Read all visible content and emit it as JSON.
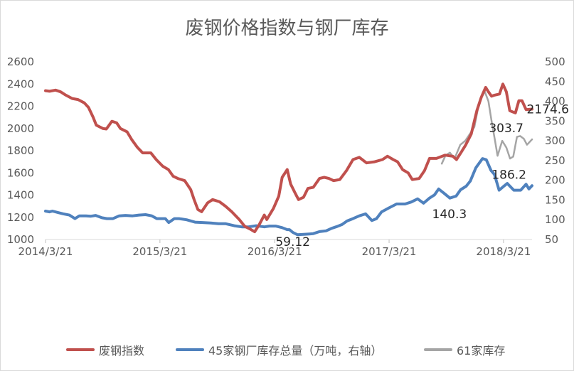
{
  "chart_data": {
    "type": "line",
    "title": "废钢价格指数与钢厂库存",
    "x_ticks": [
      "2014/3/21",
      "2015/3/21",
      "2016/3/21",
      "2017/3/21",
      "2018/3/21"
    ],
    "x_range": [
      "2014/3/21",
      "2018/6/20"
    ],
    "y_left": {
      "min": 1000,
      "max": 2600,
      "step": 200,
      "ticks": [
        "2600",
        "2400",
        "2200",
        "2000",
        "1800",
        "1600",
        "1400",
        "1200",
        "1000"
      ]
    },
    "y_right": {
      "min": 50,
      "max": 500,
      "step": 50,
      "ticks": [
        "500",
        "450",
        "400",
        "350",
        "300",
        "250",
        "200",
        "150",
        "100",
        "50"
      ]
    },
    "grid": false,
    "legend_position": "bottom",
    "series": [
      {
        "name": "废钢指数",
        "axis": "left",
        "color": "#c0504d",
        "points": [
          [
            "2014-03-21",
            2340
          ],
          [
            "2014-04-03",
            2335
          ],
          [
            "2014-04-22",
            2345
          ],
          [
            "2014-05-08",
            2330
          ],
          [
            "2014-05-25",
            2300
          ],
          [
            "2014-06-14",
            2270
          ],
          [
            "2014-07-03",
            2260
          ],
          [
            "2014-07-23",
            2230
          ],
          [
            "2014-08-05",
            2190
          ],
          [
            "2014-08-20",
            2100
          ],
          [
            "2014-08-30",
            2030
          ],
          [
            "2014-09-20",
            2000
          ],
          [
            "2014-10-01",
            1995
          ],
          [
            "2014-10-19",
            2065
          ],
          [
            "2014-11-03",
            2050
          ],
          [
            "2014-11-15",
            2000
          ],
          [
            "2014-12-06",
            1970
          ],
          [
            "2014-12-21",
            1900
          ],
          [
            "2015-01-08",
            1830
          ],
          [
            "2015-01-25",
            1780
          ],
          [
            "2015-02-20",
            1780
          ],
          [
            "2015-03-09",
            1720
          ],
          [
            "2015-03-30",
            1660
          ],
          [
            "2015-04-17",
            1630
          ],
          [
            "2015-05-02",
            1570
          ],
          [
            "2015-05-17",
            1550
          ],
          [
            "2015-06-08",
            1530
          ],
          [
            "2015-06-27",
            1450
          ],
          [
            "2015-07-08",
            1360
          ],
          [
            "2015-07-20",
            1270
          ],
          [
            "2015-08-01",
            1250
          ],
          [
            "2015-08-20",
            1330
          ],
          [
            "2015-09-05",
            1360
          ],
          [
            "2015-09-27",
            1340
          ],
          [
            "2015-10-16",
            1300
          ],
          [
            "2015-11-05",
            1250
          ],
          [
            "2015-11-29",
            1180
          ],
          [
            "2015-12-16",
            1120
          ],
          [
            "2016-01-05",
            1090
          ],
          [
            "2016-01-17",
            1070
          ],
          [
            "2016-01-31",
            1130
          ],
          [
            "2016-02-17",
            1220
          ],
          [
            "2016-02-25",
            1180
          ],
          [
            "2016-03-17",
            1280
          ],
          [
            "2016-04-03",
            1390
          ],
          [
            "2016-04-14",
            1560
          ],
          [
            "2016-04-30",
            1630
          ],
          [
            "2016-05-11",
            1500
          ],
          [
            "2016-05-25",
            1420
          ],
          [
            "2016-06-05",
            1360
          ],
          [
            "2016-06-21",
            1380
          ],
          [
            "2016-07-05",
            1460
          ],
          [
            "2016-07-22",
            1470
          ],
          [
            "2016-08-11",
            1550
          ],
          [
            "2016-08-26",
            1560
          ],
          [
            "2016-09-10",
            1550
          ],
          [
            "2016-09-25",
            1530
          ],
          [
            "2016-10-15",
            1540
          ],
          [
            "2016-11-05",
            1620
          ],
          [
            "2016-11-26",
            1720
          ],
          [
            "2016-12-16",
            1740
          ],
          [
            "2017-01-08",
            1690
          ],
          [
            "2017-02-03",
            1700
          ],
          [
            "2017-02-28",
            1720
          ],
          [
            "2017-03-16",
            1750
          ],
          [
            "2017-04-03",
            1720
          ],
          [
            "2017-04-17",
            1700
          ],
          [
            "2017-05-03",
            1630
          ],
          [
            "2017-05-21",
            1600
          ],
          [
            "2017-06-03",
            1540
          ],
          [
            "2017-06-25",
            1550
          ],
          [
            "2017-07-12",
            1620
          ],
          [
            "2017-07-28",
            1730
          ],
          [
            "2017-08-19",
            1730
          ],
          [
            "2017-09-16",
            1760
          ],
          [
            "2017-10-10",
            1750
          ],
          [
            "2017-10-22",
            1720
          ],
          [
            "2017-11-07",
            1790
          ],
          [
            "2017-11-20",
            1850
          ],
          [
            "2017-12-08",
            1950
          ],
          [
            "2017-12-26",
            2160
          ],
          [
            "2018-01-09",
            2280
          ],
          [
            "2018-01-23",
            2370
          ],
          [
            "2018-02-01",
            2330
          ],
          [
            "2018-02-11",
            2290
          ],
          [
            "2018-02-20",
            2300
          ],
          [
            "2018-03-08",
            2310
          ],
          [
            "2018-03-19",
            2400
          ],
          [
            "2018-03-30",
            2330
          ],
          [
            "2018-04-10",
            2160
          ],
          [
            "2018-04-28",
            2140
          ],
          [
            "2018-05-09",
            2250
          ],
          [
            "2018-05-19",
            2250
          ],
          [
            "2018-06-01",
            2170
          ],
          [
            "2018-06-20",
            2174.6
          ]
        ],
        "label": "2174.6"
      },
      {
        "name": "45家钢厂库存总量（万吨，右轴）",
        "axis": "right",
        "color": "#4f81bd",
        "points": [
          [
            "2014-03-21",
            122
          ],
          [
            "2014-04-03",
            120
          ],
          [
            "2014-04-12",
            122
          ],
          [
            "2014-05-01",
            118
          ],
          [
            "2014-05-17",
            115
          ],
          [
            "2014-06-05",
            112
          ],
          [
            "2014-06-23",
            103
          ],
          [
            "2014-07-07",
            110
          ],
          [
            "2014-07-28",
            110
          ],
          [
            "2014-08-13",
            109
          ],
          [
            "2014-08-28",
            111
          ],
          [
            "2014-09-17",
            105
          ],
          [
            "2014-10-03",
            103
          ],
          [
            "2014-10-22",
            103
          ],
          [
            "2014-11-11",
            110
          ],
          [
            "2014-12-01",
            111
          ],
          [
            "2014-12-24",
            110
          ],
          [
            "2015-01-13",
            112
          ],
          [
            "2015-02-03",
            113
          ],
          [
            "2015-02-23",
            110
          ],
          [
            "2015-03-11",
            103
          ],
          [
            "2015-04-07",
            103
          ],
          [
            "2015-04-18",
            93
          ],
          [
            "2015-05-06",
            103
          ],
          [
            "2015-05-21",
            103
          ],
          [
            "2015-06-14",
            100
          ],
          [
            "2015-07-11",
            94
          ],
          [
            "2015-08-04",
            93
          ],
          [
            "2015-08-30",
            92
          ],
          [
            "2015-09-24",
            90
          ],
          [
            "2015-10-17",
            90
          ],
          [
            "2015-11-13",
            85
          ],
          [
            "2015-12-07",
            82
          ],
          [
            "2015-12-29",
            82
          ],
          [
            "2016-01-22",
            85
          ],
          [
            "2016-02-17",
            82
          ],
          [
            "2016-03-04",
            84
          ],
          [
            "2016-03-24",
            84
          ],
          [
            "2016-04-14",
            80
          ],
          [
            "2016-04-30",
            75
          ],
          [
            "2016-05-07",
            75
          ],
          [
            "2016-05-18",
            68
          ],
          [
            "2016-06-02",
            62
          ],
          [
            "2016-06-21",
            63
          ],
          [
            "2016-07-09",
            64
          ],
          [
            "2016-07-22",
            65
          ],
          [
            "2016-08-11",
            70
          ],
          [
            "2016-09-01",
            72
          ],
          [
            "2016-09-18",
            78
          ],
          [
            "2016-10-06",
            83
          ],
          [
            "2016-10-22",
            88
          ],
          [
            "2016-11-07",
            97
          ],
          [
            "2016-11-26",
            103
          ],
          [
            "2016-12-16",
            110
          ],
          [
            "2017-01-05",
            115
          ],
          [
            "2017-01-25",
            98
          ],
          [
            "2017-02-09",
            103
          ],
          [
            "2017-02-25",
            120
          ],
          [
            "2017-03-20",
            130
          ],
          [
            "2017-04-14",
            140
          ],
          [
            "2017-05-11",
            140
          ],
          [
            "2017-05-31",
            145
          ],
          [
            "2017-06-20",
            153
          ],
          [
            "2017-07-09",
            142
          ],
          [
            "2017-07-28",
            155
          ],
          [
            "2017-08-13",
            163
          ],
          [
            "2017-08-26",
            178
          ],
          [
            "2017-09-11",
            168
          ],
          [
            "2017-10-01",
            155
          ],
          [
            "2017-10-21",
            160
          ],
          [
            "2017-11-04",
            176
          ],
          [
            "2017-11-22",
            185
          ],
          [
            "2017-12-05",
            198
          ],
          [
            "2017-12-23",
            232
          ],
          [
            "2018-01-13",
            255
          ],
          [
            "2018-01-25",
            252
          ],
          [
            "2018-02-09",
            225
          ],
          [
            "2018-02-20",
            215
          ],
          [
            "2018-03-07",
            175
          ],
          [
            "2018-03-19",
            183
          ],
          [
            "2018-04-02",
            192
          ],
          [
            "2018-04-23",
            175
          ],
          [
            "2018-05-15",
            175
          ],
          [
            "2018-06-01",
            190
          ],
          [
            "2018-06-10",
            178
          ],
          [
            "2018-06-20",
            186.2
          ]
        ],
        "label_min": "59.12",
        "label_mid": "140.3",
        "label": "186.2"
      },
      {
        "name": "61家库存",
        "axis": "right",
        "color": "#a5a5a5",
        "points": [
          [
            "2017-09-05",
            242
          ],
          [
            "2017-09-17",
            263
          ],
          [
            "2017-10-01",
            270
          ],
          [
            "2017-10-16",
            255
          ],
          [
            "2017-11-03",
            290
          ],
          [
            "2017-11-19",
            300
          ],
          [
            "2017-12-06",
            320
          ],
          [
            "2017-12-18",
            335
          ],
          [
            "2017-12-29",
            380
          ],
          [
            "2018-01-10",
            410
          ],
          [
            "2018-01-20",
            425
          ],
          [
            "2018-02-01",
            400
          ],
          [
            "2018-02-11",
            350
          ],
          [
            "2018-02-22",
            300
          ],
          [
            "2018-03-02",
            262
          ],
          [
            "2018-03-17",
            300
          ],
          [
            "2018-03-30",
            283
          ],
          [
            "2018-04-11",
            255
          ],
          [
            "2018-04-21",
            260
          ],
          [
            "2018-05-03",
            310
          ],
          [
            "2018-05-13",
            312
          ],
          [
            "2018-05-25",
            305
          ],
          [
            "2018-06-04",
            290
          ],
          [
            "2018-06-20",
            303.7
          ]
        ],
        "label": "303.7"
      }
    ]
  }
}
